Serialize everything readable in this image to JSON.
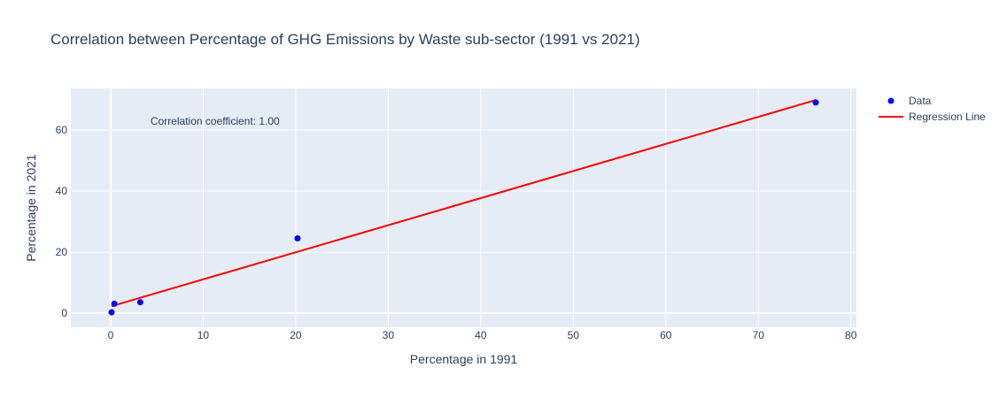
{
  "chart_data": {
    "type": "scatter",
    "title": "Correlation between Percentage of GHG Emissions by Waste sub-sector (1991 vs 2021)",
    "xlabel": "Percentage in 1991",
    "ylabel": "Percentage in 2021",
    "xlim": [
      -4.3,
      80.6
    ],
    "ylim": [
      -4.6,
      73.6
    ],
    "xticks": [
      0,
      10,
      20,
      30,
      40,
      50,
      60,
      70,
      80
    ],
    "yticks": [
      0,
      20,
      40,
      60
    ],
    "grid": true,
    "legend_position": "top-right",
    "plot_bg": "#e5ecf6",
    "series": [
      {
        "name": "Data",
        "mode": "markers",
        "color": "#0000ff",
        "x": [
          0.1,
          0.4,
          3.2,
          20.2,
          76.2
        ],
        "y": [
          0.3,
          3.1,
          3.6,
          24.5,
          69.0
        ]
      },
      {
        "name": "Regression Line",
        "mode": "lines",
        "color": "#ff0000",
        "x": [
          0.1,
          76.2
        ],
        "y": [
          2.3,
          69.8
        ]
      }
    ],
    "annotations": [
      {
        "text": "Correlation coefficient: 1.00",
        "x": 4.3,
        "y": 62.9
      }
    ]
  }
}
